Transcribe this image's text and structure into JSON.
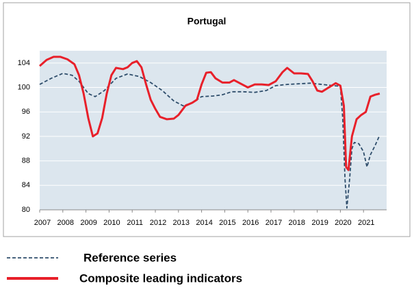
{
  "chart_data": {
    "type": "line",
    "title": "Portugal",
    "xlim": [
      2007,
      2022
    ],
    "xticks": [
      2007,
      2008,
      2009,
      2010,
      2011,
      2012,
      2013,
      2014,
      2015,
      2016,
      2017,
      2018,
      2019,
      2020,
      2021
    ],
    "ylim": [
      80,
      106
    ],
    "yticks": [
      80,
      84,
      88,
      92,
      96,
      100,
      104
    ],
    "grid": true,
    "legend": "bottom",
    "series": [
      {
        "name": "Reference series",
        "color": "#2e4d6b",
        "dash": true,
        "x": [
          2007.0,
          2007.5,
          2008.0,
          2008.4,
          2008.7,
          2009.1,
          2009.4,
          2009.8,
          2010.3,
          2010.8,
          2011.3,
          2011.8,
          2012.3,
          2012.8,
          2013.2,
          2013.6,
          2014.0,
          2014.5,
          2014.9,
          2015.3,
          2015.8,
          2016.3,
          2016.8,
          2017.2,
          2017.7,
          2018.2,
          2018.7,
          2019.2,
          2019.7,
          2020.0,
          2020.1,
          2020.2,
          2020.28,
          2020.4,
          2020.5,
          2020.6,
          2020.8,
          2021.0,
          2021.15,
          2021.3,
          2021.5,
          2021.7
        ],
        "values": [
          100.5,
          101.5,
          102.3,
          102,
          101,
          99,
          98.5,
          99.5,
          101.5,
          102.2,
          101.8,
          100.8,
          99.5,
          97.8,
          97,
          97.5,
          98.5,
          98.6,
          98.8,
          99.3,
          99.3,
          99.2,
          99.5,
          100.3,
          100.5,
          100.6,
          100.7,
          100.5,
          100.3,
          100.2,
          95,
          85,
          80.3,
          85,
          90,
          91,
          90.8,
          89.5,
          87,
          89,
          90.5,
          92.2
        ]
      },
      {
        "name": "Composite leading indicators",
        "color": "#e8202a",
        "dash": false,
        "x": [
          2007.0,
          2007.3,
          2007.6,
          2007.9,
          2008.2,
          2008.5,
          2008.7,
          2008.9,
          2009.1,
          2009.3,
          2009.5,
          2009.7,
          2009.9,
          2010.1,
          2010.3,
          2010.6,
          2010.8,
          2011.0,
          2011.2,
          2011.4,
          2011.6,
          2011.8,
          2012.0,
          2012.2,
          2012.5,
          2012.8,
          2013.0,
          2013.3,
          2013.6,
          2013.8,
          2014.0,
          2014.2,
          2014.4,
          2014.6,
          2014.9,
          2015.2,
          2015.4,
          2015.7,
          2016.0,
          2016.3,
          2016.6,
          2016.9,
          2017.2,
          2017.5,
          2017.7,
          2018.0,
          2018.3,
          2018.6,
          2018.8,
          2019.0,
          2019.2,
          2019.5,
          2019.8,
          2020.0,
          2020.15,
          2020.25,
          2020.35,
          2020.5,
          2020.7,
          2020.9,
          2021.1,
          2021.3,
          2021.5,
          2021.7
        ],
        "values": [
          103.5,
          104.5,
          105,
          105,
          104.6,
          103.8,
          102,
          99,
          95,
          92,
          92.5,
          95,
          99,
          102,
          103.2,
          103,
          103.3,
          104,
          104.3,
          103.3,
          100.5,
          98,
          96.5,
          95.2,
          94.8,
          94.9,
          95.5,
          97,
          97.5,
          98,
          100.5,
          102.4,
          102.5,
          101.5,
          100.8,
          100.8,
          101.2,
          100.6,
          100,
          100.5,
          100.5,
          100.4,
          101,
          102.5,
          103.2,
          102.3,
          102.3,
          102.2,
          101,
          99.5,
          99.3,
          100,
          100.7,
          100.3,
          97,
          87,
          86.5,
          92,
          94.8,
          95.5,
          96,
          98.5,
          98.8,
          99
        ]
      }
    ]
  }
}
